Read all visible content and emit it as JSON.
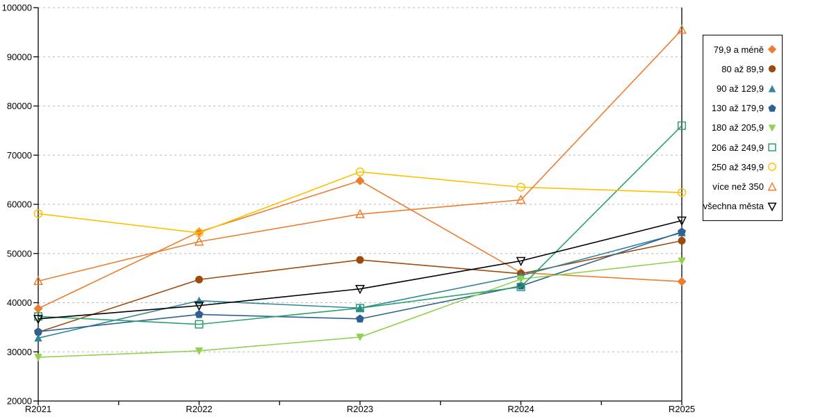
{
  "chart_data": {
    "type": "line",
    "title": "",
    "xlabel": "",
    "ylabel": "",
    "categories": [
      "R2021",
      "R2022",
      "R2023",
      "R2024",
      "R2025"
    ],
    "ylim": [
      20000,
      100000
    ],
    "ytick_step": 10000,
    "y_tick_labels": [
      "20000",
      "30000",
      "40000",
      "50000",
      "60000",
      "70000",
      "80000",
      "90000",
      "100000"
    ],
    "grid": "horizontal-dashed",
    "gridline_color": "#b8b8b8",
    "axis_color": "#000000",
    "legend_position": "right-outside",
    "series": [
      {
        "name": "79,9 a méně",
        "color": "#ED7D31",
        "marker": "diamond-filled",
        "values": [
          38800,
          54400,
          64800,
          46100,
          44300
        ]
      },
      {
        "name": "80 až 89,9",
        "color": "#9D4A0D",
        "marker": "circle-filled",
        "values": [
          34000,
          44700,
          48700,
          45900,
          52600
        ]
      },
      {
        "name": "90 až 129,9",
        "color": "#31859C",
        "marker": "triangle-up-filled",
        "values": [
          32800,
          40400,
          38900,
          45500,
          54200
        ]
      },
      {
        "name": "130 až 179,9",
        "color": "#2E6094",
        "marker": "pentagon-filled",
        "values": [
          34100,
          37600,
          36700,
          43400,
          54400
        ]
      },
      {
        "name": "180 až 205,9",
        "color": "#92D050",
        "marker": "triangle-down-filled",
        "values": [
          28900,
          30200,
          33000,
          44800,
          48500
        ]
      },
      {
        "name": "206 až 249,9",
        "color": "#27A268",
        "marker": "square-open",
        "values": [
          37200,
          35600,
          38900,
          43200,
          76000
        ]
      },
      {
        "name": "250 až 349,9",
        "color": "#FFC000",
        "marker": "circle-open",
        "values": [
          58100,
          54200,
          66600,
          63500,
          62400
        ]
      },
      {
        "name": "více než 350",
        "color": "#ED7D31",
        "marker": "triangle-up-open",
        "values": [
          44400,
          52400,
          58000,
          60900,
          95500
        ]
      },
      {
        "name": "všechna města",
        "color": "#000000",
        "marker": "triangle-down-open",
        "values": [
          36700,
          39400,
          42800,
          48500,
          56700
        ]
      }
    ]
  }
}
